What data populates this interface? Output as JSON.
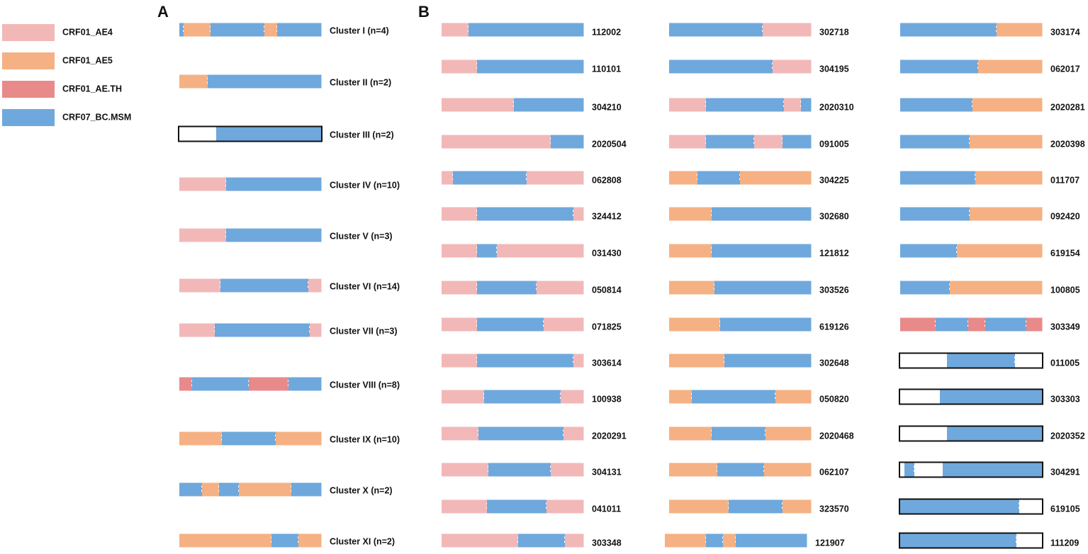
{
  "legend": [
    "CRF01_AE4",
    "CRF01_AE5",
    "CRF01_AE.TH",
    "CRF07_BC.MSM"
  ],
  "panel_a": {
    "label": "A",
    "clusters": [
      "Cluster I (n=4)",
      "Cluster II (n=2)",
      "Cluster III (n=2)",
      "Cluster IV (n=10)",
      "Cluster V (n=3)",
      "Cluster VI (n=14)",
      "Cluster VII (n=3)",
      "Cluster VIII (n=8)",
      "Cluster IX (n=10)",
      "Cluster X (n=2)",
      "Cluster XI (n=2)"
    ]
  },
  "panel_b": {
    "label": "B",
    "columns": [
      [
        "112002",
        "110101",
        "304210",
        "2020504",
        "062808",
        "324412",
        "031430",
        "050814",
        "071825",
        "303614",
        "100938",
        "2020291",
        "304131",
        "041011",
        "303348"
      ],
      [
        "302718",
        "304195",
        "2020310",
        "091005",
        "304225",
        "302680",
        "121812",
        "303526",
        "619126",
        "302648",
        "050820",
        "2020468",
        "062107",
        "323570",
        "121907"
      ],
      [
        "303174",
        "062017",
        "2020281",
        "2020398",
        "011707",
        "092420",
        "619154",
        "100805",
        "303349",
        "011005",
        "303303",
        "2020352",
        "304291",
        "619105",
        "111209"
      ]
    ]
  }
}
